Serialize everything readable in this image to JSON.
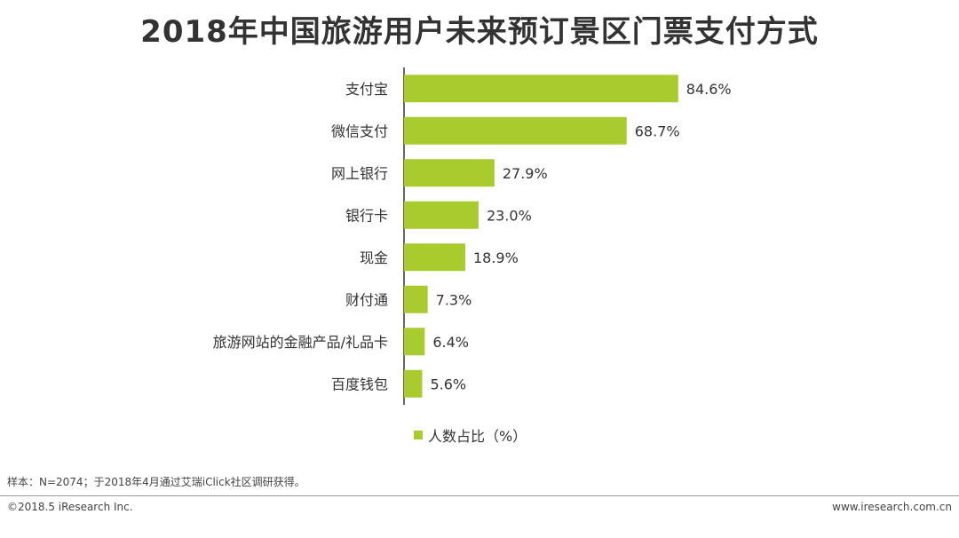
{
  "colors": {
    "bar": "#A8CC2E",
    "axis": "#333333"
  },
  "chart_data": {
    "type": "bar",
    "orientation": "horizontal",
    "title": "2018年中国旅游用户未来预订景区门票支付方式",
    "categories": [
      "支付宝",
      "微信支付",
      "网上银行",
      "银行卡",
      "现金",
      "财付通",
      "旅游网站的金融产品/礼品卡",
      "百度钱包"
    ],
    "series": [
      {
        "name": "人数占比（%）",
        "values": [
          84.6,
          68.7,
          27.9,
          23.0,
          18.9,
          7.3,
          6.4,
          5.6
        ]
      }
    ],
    "value_labels": [
      "84.6%",
      "68.7%",
      "27.9%",
      "23.0%",
      "18.9%",
      "7.3%",
      "6.4%",
      "5.6%"
    ],
    "xlim": [
      0,
      100
    ],
    "grid": false,
    "legend_position": "bottom"
  },
  "footer": {
    "note": "样本：N=2074；于2018年4月通过艾瑞iClick社区调研获得。",
    "copyright": "©2018.5 iResearch Inc.",
    "website": "www.iresearch.com.cn"
  }
}
